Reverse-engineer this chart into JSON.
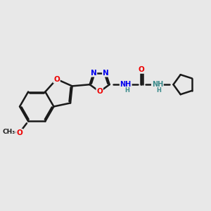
{
  "background_color": "#e8e8e8",
  "bond_color": "#1a1a1a",
  "bond_width": 1.8,
  "atom_colors": {
    "N": "#0000ee",
    "O": "#ee0000",
    "NH_teal": "#3a8a8a",
    "C": "#1a1a1a"
  },
  "figsize": [
    3.0,
    3.0
  ],
  "dpi": 100,
  "xlim": [
    0,
    10
  ],
  "ylim": [
    2.0,
    8.0
  ]
}
